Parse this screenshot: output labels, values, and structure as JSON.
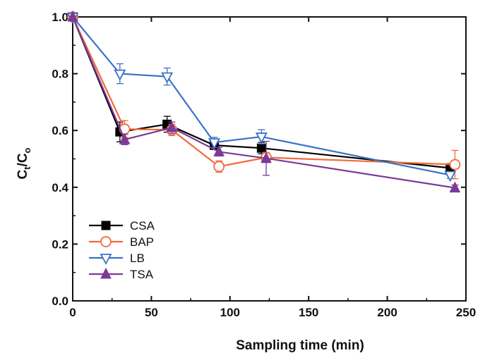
{
  "chart_data": {
    "type": "line",
    "xlabel": "Sampling time (min)",
    "ylabel_main": "C",
    "ylabel_sub1": "t",
    "ylabel_sep": "/C",
    "ylabel_sub2": "o",
    "xlim": [
      0,
      250
    ],
    "ylim": [
      0.0,
      1.0
    ],
    "xticks": [
      0,
      50,
      100,
      150,
      200,
      250
    ],
    "yticks": [
      0.0,
      0.2,
      0.4,
      0.6,
      0.8,
      1.0
    ],
    "xtick_labels": [
      "0",
      "50",
      "100",
      "150",
      "200",
      "250"
    ],
    "ytick_labels": [
      "0.0",
      "0.2",
      "0.4",
      "0.6",
      "0.8",
      "1.0"
    ],
    "grid": false,
    "legend_position": "bottom-left",
    "series": [
      {
        "name": "CSA",
        "color": "#000000",
        "marker": "square-filled",
        "x": [
          0,
          30,
          60,
          90,
          120,
          240
        ],
        "y": [
          1.0,
          0.595,
          0.622,
          0.548,
          0.538,
          0.468
        ],
        "err": [
          0.0,
          0.035,
          0.028,
          0.015,
          0.02,
          0.015
        ]
      },
      {
        "name": "BAP",
        "color": "#f06a3c",
        "marker": "circle-open",
        "x": [
          0,
          33,
          63,
          93,
          123,
          243
        ],
        "y": [
          1.0,
          0.605,
          0.602,
          0.473,
          0.505,
          0.48
        ],
        "err": [
          0.0,
          0.03,
          0.02,
          0.02,
          0.018,
          0.05
        ]
      },
      {
        "name": "LB",
        "color": "#3a72c4",
        "marker": "triangle-down-open",
        "x": [
          0,
          30,
          60,
          90,
          120,
          240
        ],
        "y": [
          1.0,
          0.8,
          0.79,
          0.558,
          0.578,
          0.443
        ],
        "err": [
          0.0,
          0.035,
          0.03,
          0.018,
          0.025,
          0.012
        ]
      },
      {
        "name": "TSA",
        "color": "#7b3a95",
        "marker": "triangle-up-filled",
        "x": [
          0,
          33,
          63,
          93,
          123,
          243
        ],
        "y": [
          1.0,
          0.568,
          0.61,
          0.525,
          0.502,
          0.398
        ],
        "err": [
          0.0,
          0.018,
          0.02,
          0.015,
          0.06,
          0.01
        ]
      }
    ]
  }
}
